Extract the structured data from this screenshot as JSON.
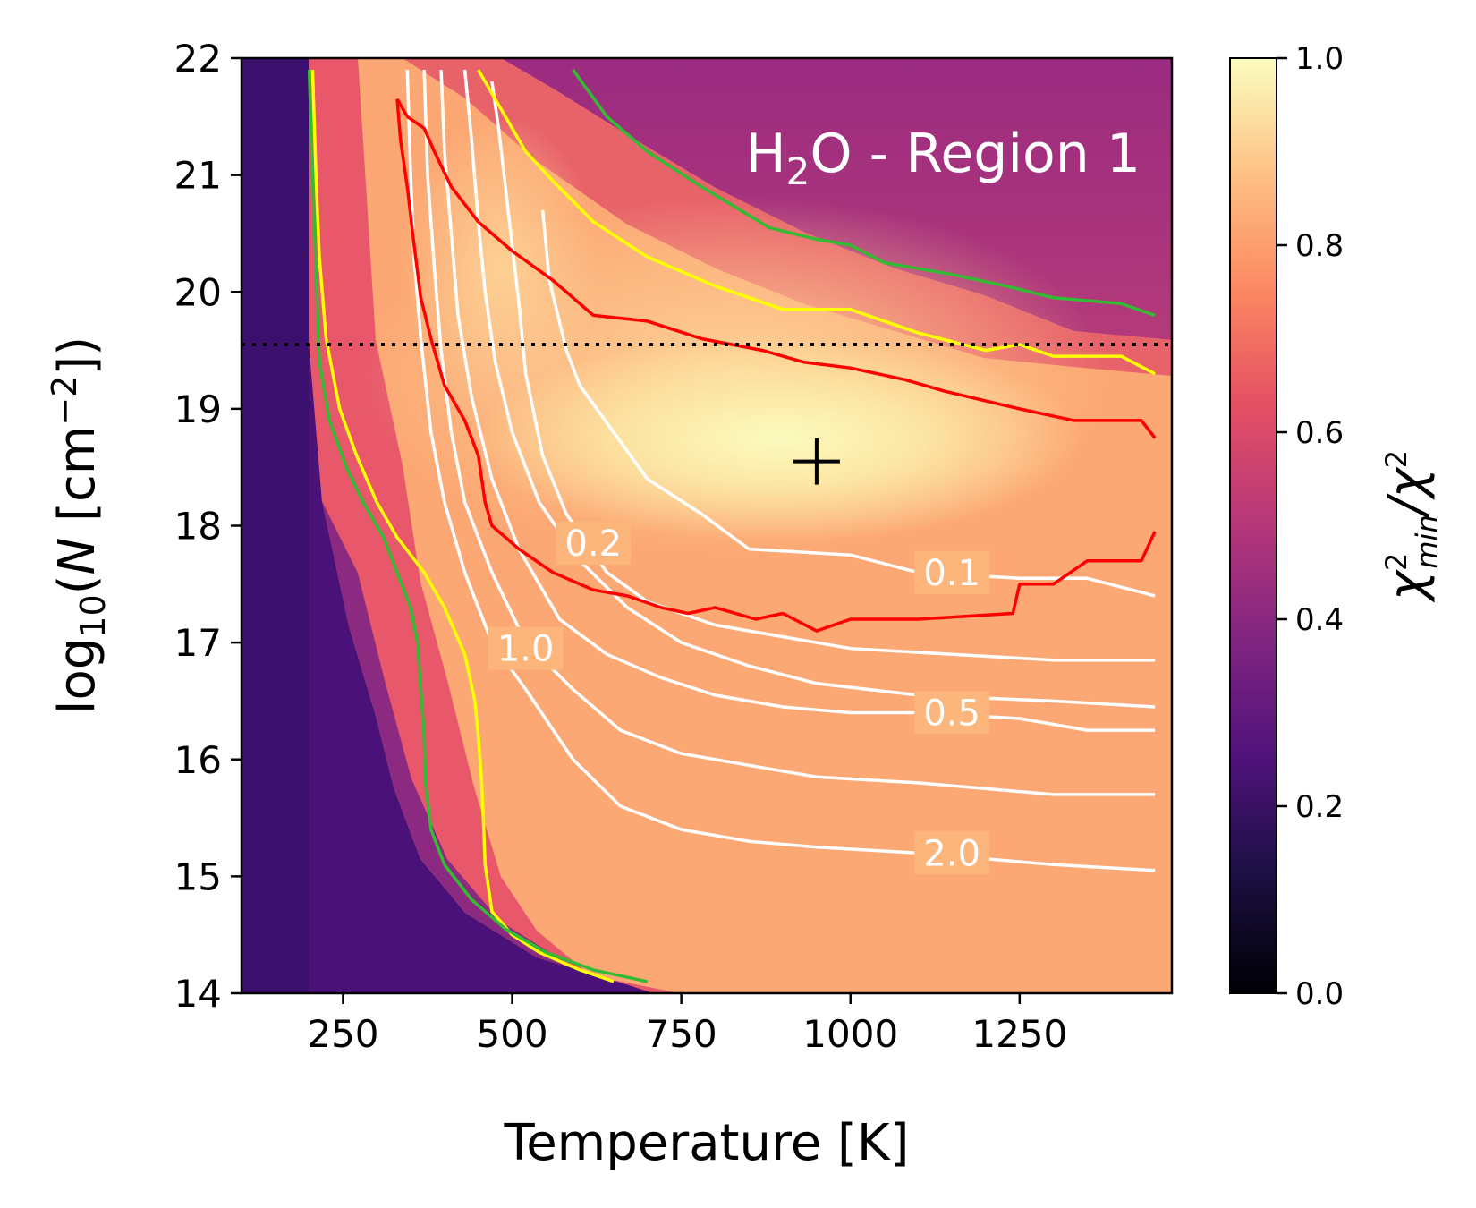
{
  "chart_data": {
    "type": "heatmap",
    "title": "H2O - Region 1",
    "title_parts": {
      "main": "H",
      "sub": "2",
      "rest": "O - Region 1"
    },
    "xlabel": "Temperature [K]",
    "ylabel_parts": {
      "pre": "log",
      "sub": "10",
      "mid": "(",
      "italic": "N",
      "post": " [cm",
      "sup": "−2",
      "end": "])"
    },
    "xlim": [
      100,
      1475
    ],
    "ylim": [
      14,
      22
    ],
    "x_ticks": [
      250,
      500,
      750,
      1000,
      1250
    ],
    "x_tick_labels": [
      "250",
      "500",
      "750",
      "1000",
      "1250"
    ],
    "y_ticks": [
      14,
      15,
      16,
      17,
      18,
      19,
      20,
      21,
      22
    ],
    "y_tick_labels": [
      "14",
      "15",
      "16",
      "17",
      "18",
      "19",
      "20",
      "21",
      "22"
    ],
    "colorbar": {
      "label_parts": {
        "chi": "χ",
        "sup": "2",
        "sub": "min",
        "slash": "/χ",
        "sup2": "2"
      },
      "range": [
        0.0,
        1.0
      ],
      "ticks": [
        0.0,
        0.2,
        0.4,
        0.6,
        0.8,
        1.0
      ],
      "tick_labels": [
        "0.0",
        "0.2",
        "0.4",
        "0.6",
        "0.8",
        "1.0"
      ],
      "colormap": "magma"
    },
    "best_fit": {
      "T": 950,
      "logN": 18.55,
      "marker": "plus"
    },
    "reference_line": {
      "logN": 19.55,
      "style": "dotted",
      "color": "#000000"
    },
    "white_contours": [
      {
        "level": "0.1",
        "label": "0.1",
        "label_at": [
          1150,
          17.6
        ],
        "points": [
          [
            545,
            20.7
          ],
          [
            555,
            20.1
          ],
          [
            580,
            19.5
          ],
          [
            600,
            19.2
          ],
          [
            650,
            18.8
          ],
          [
            700,
            18.4
          ],
          [
            780,
            18.1
          ],
          [
            850,
            17.8
          ],
          [
            1000,
            17.75
          ],
          [
            1100,
            17.6
          ],
          [
            1250,
            17.55
          ],
          [
            1350,
            17.55
          ],
          [
            1450,
            17.4
          ]
        ]
      },
      {
        "level": "0.2",
        "label": "0.2",
        "label_at": [
          620,
          17.85
        ],
        "points": [
          [
            470,
            21.8
          ],
          [
            480,
            21.4
          ],
          [
            490,
            20.9
          ],
          [
            500,
            20.4
          ],
          [
            510,
            19.9
          ],
          [
            520,
            19.3
          ],
          [
            545,
            18.6
          ],
          [
            580,
            18.1
          ],
          [
            640,
            17.6
          ],
          [
            700,
            17.35
          ],
          [
            800,
            17.15
          ],
          [
            900,
            17.05
          ],
          [
            1000,
            16.95
          ],
          [
            1150,
            16.9
          ],
          [
            1300,
            16.85
          ],
          [
            1450,
            16.85
          ]
        ]
      },
      {
        "level": "0.3",
        "label": "",
        "label_at": null,
        "points": [
          [
            430,
            21.9
          ],
          [
            440,
            21.3
          ],
          [
            450,
            20.6
          ],
          [
            460,
            20.0
          ],
          [
            475,
            19.4
          ],
          [
            500,
            18.8
          ],
          [
            540,
            18.2
          ],
          [
            600,
            17.7
          ],
          [
            670,
            17.3
          ],
          [
            750,
            17.0
          ],
          [
            850,
            16.8
          ],
          [
            950,
            16.65
          ],
          [
            1100,
            16.55
          ],
          [
            1300,
            16.5
          ],
          [
            1450,
            16.45
          ]
        ]
      },
      {
        "level": "0.5",
        "label": "0.5",
        "label_at": [
          1150,
          16.4
        ],
        "points": [
          [
            395,
            21.9
          ],
          [
            400,
            21.2
          ],
          [
            410,
            20.5
          ],
          [
            420,
            19.8
          ],
          [
            440,
            19.1
          ],
          [
            470,
            18.4
          ],
          [
            510,
            17.8
          ],
          [
            570,
            17.2
          ],
          [
            640,
            16.9
          ],
          [
            720,
            16.7
          ],
          [
            800,
            16.55
          ],
          [
            900,
            16.45
          ],
          [
            1000,
            16.4
          ],
          [
            1100,
            16.4
          ],
          [
            1250,
            16.35
          ],
          [
            1350,
            16.25
          ],
          [
            1450,
            16.25
          ]
        ]
      },
      {
        "level": "1.0",
        "label": "1.0",
        "label_at": [
          520,
          16.95
        ],
        "points": [
          [
            370,
            21.9
          ],
          [
            375,
            21.0
          ],
          [
            385,
            20.2
          ],
          [
            395,
            19.5
          ],
          [
            410,
            18.8
          ],
          [
            430,
            18.2
          ],
          [
            470,
            17.6
          ],
          [
            520,
            17.0
          ],
          [
            590,
            16.6
          ],
          [
            660,
            16.25
          ],
          [
            750,
            16.05
          ],
          [
            850,
            15.95
          ],
          [
            950,
            15.85
          ],
          [
            1100,
            15.8
          ],
          [
            1300,
            15.7
          ],
          [
            1450,
            15.7
          ]
        ]
      },
      {
        "level": "2.0",
        "label": "2.0",
        "label_at": [
          1150,
          15.2
        ],
        "points": [
          [
            345,
            21.9
          ],
          [
            350,
            21.0
          ],
          [
            355,
            20.3
          ],
          [
            365,
            19.6
          ],
          [
            380,
            18.8
          ],
          [
            400,
            18.2
          ],
          [
            430,
            17.6
          ],
          [
            470,
            17.0
          ],
          [
            520,
            16.6
          ],
          [
            590,
            16.0
          ],
          [
            660,
            15.6
          ],
          [
            750,
            15.4
          ],
          [
            850,
            15.3
          ],
          [
            950,
            15.25
          ],
          [
            1100,
            15.2
          ],
          [
            1300,
            15.1
          ],
          [
            1450,
            15.05
          ]
        ]
      }
    ],
    "red_contour": {
      "color": "#ff0000",
      "points": [
        [
          330,
          21.65
        ],
        [
          345,
          21.5
        ],
        [
          370,
          21.4
        ],
        [
          385,
          21.2
        ],
        [
          410,
          20.9
        ],
        [
          450,
          20.6
        ],
        [
          500,
          20.35
        ],
        [
          560,
          20.1
        ],
        [
          620,
          19.8
        ],
        [
          700,
          19.75
        ],
        [
          780,
          19.6
        ],
        [
          870,
          19.5
        ],
        [
          930,
          19.4
        ],
        [
          1000,
          19.35
        ],
        [
          1080,
          19.25
        ],
        [
          1140,
          19.15
        ],
        [
          1250,
          19.0
        ],
        [
          1330,
          18.9
        ],
        [
          1430,
          18.9
        ],
        [
          1450,
          18.75
        ]
      ],
      "points_inner": [
        [
          330,
          21.65
        ],
        [
          335,
          21.3
        ],
        [
          345,
          20.9
        ],
        [
          355,
          20.4
        ],
        [
          365,
          19.95
        ],
        [
          380,
          19.6
        ],
        [
          400,
          19.2
        ],
        [
          430,
          18.9
        ],
        [
          450,
          18.6
        ],
        [
          460,
          18.2
        ],
        [
          470,
          18.0
        ],
        [
          510,
          17.8
        ],
        [
          560,
          17.6
        ],
        [
          620,
          17.45
        ],
        [
          670,
          17.4
        ],
        [
          720,
          17.3
        ],
        [
          760,
          17.25
        ],
        [
          800,
          17.3
        ],
        [
          860,
          17.2
        ],
        [
          900,
          17.25
        ],
        [
          950,
          17.1
        ],
        [
          1000,
          17.2
        ],
        [
          1100,
          17.2
        ],
        [
          1240,
          17.25
        ],
        [
          1250,
          17.5
        ],
        [
          1300,
          17.5
        ],
        [
          1350,
          17.7
        ],
        [
          1430,
          17.7
        ],
        [
          1450,
          17.95
        ]
      ]
    },
    "yellow_contour": {
      "color": "#ffff00",
      "points_upper": [
        [
          450,
          21.9
        ],
        [
          480,
          21.6
        ],
        [
          520,
          21.2
        ],
        [
          560,
          20.95
        ],
        [
          620,
          20.6
        ],
        [
          700,
          20.3
        ],
        [
          800,
          20.05
        ],
        [
          900,
          19.85
        ],
        [
          1000,
          19.85
        ],
        [
          1100,
          19.65
        ],
        [
          1200,
          19.5
        ],
        [
          1250,
          19.55
        ],
        [
          1300,
          19.45
        ],
        [
          1400,
          19.45
        ],
        [
          1450,
          19.3
        ]
      ],
      "points_lower": [
        [
          205,
          21.9
        ],
        [
          210,
          21.0
        ],
        [
          215,
          20.3
        ],
        [
          225,
          19.6
        ],
        [
          245,
          19.0
        ],
        [
          270,
          18.6
        ],
        [
          300,
          18.2
        ],
        [
          330,
          17.9
        ],
        [
          370,
          17.6
        ],
        [
          400,
          17.3
        ],
        [
          430,
          16.9
        ],
        [
          445,
          16.5
        ],
        [
          450,
          16.2
        ],
        [
          455,
          15.8
        ],
        [
          458,
          15.4
        ],
        [
          460,
          15.1
        ],
        [
          470,
          14.7
        ],
        [
          500,
          14.5
        ],
        [
          540,
          14.35
        ],
        [
          600,
          14.2
        ],
        [
          650,
          14.1
        ]
      ]
    },
    "green_contour": {
      "color": "#33bb33",
      "points_upper": [
        [
          590,
          21.9
        ],
        [
          640,
          21.5
        ],
        [
          700,
          21.2
        ],
        [
          780,
          20.9
        ],
        [
          880,
          20.55
        ],
        [
          950,
          20.45
        ],
        [
          1000,
          20.4
        ],
        [
          1050,
          20.25
        ],
        [
          1150,
          20.15
        ],
        [
          1230,
          20.05
        ],
        [
          1300,
          19.95
        ],
        [
          1400,
          19.9
        ],
        [
          1450,
          19.8
        ]
      ],
      "points_lower": [
        [
          200,
          21.9
        ],
        [
          205,
          21.0
        ],
        [
          210,
          20.2
        ],
        [
          215,
          19.4
        ],
        [
          230,
          18.9
        ],
        [
          255,
          18.5
        ],
        [
          280,
          18.2
        ],
        [
          310,
          17.9
        ],
        [
          330,
          17.6
        ],
        [
          350,
          17.3
        ],
        [
          360,
          17.0
        ],
        [
          365,
          16.6
        ],
        [
          370,
          16.2
        ],
        [
          372,
          15.8
        ],
        [
          380,
          15.4
        ],
        [
          400,
          15.1
        ],
        [
          440,
          14.8
        ],
        [
          490,
          14.55
        ],
        [
          550,
          14.35
        ],
        [
          620,
          14.2
        ],
        [
          700,
          14.1
        ]
      ]
    }
  }
}
